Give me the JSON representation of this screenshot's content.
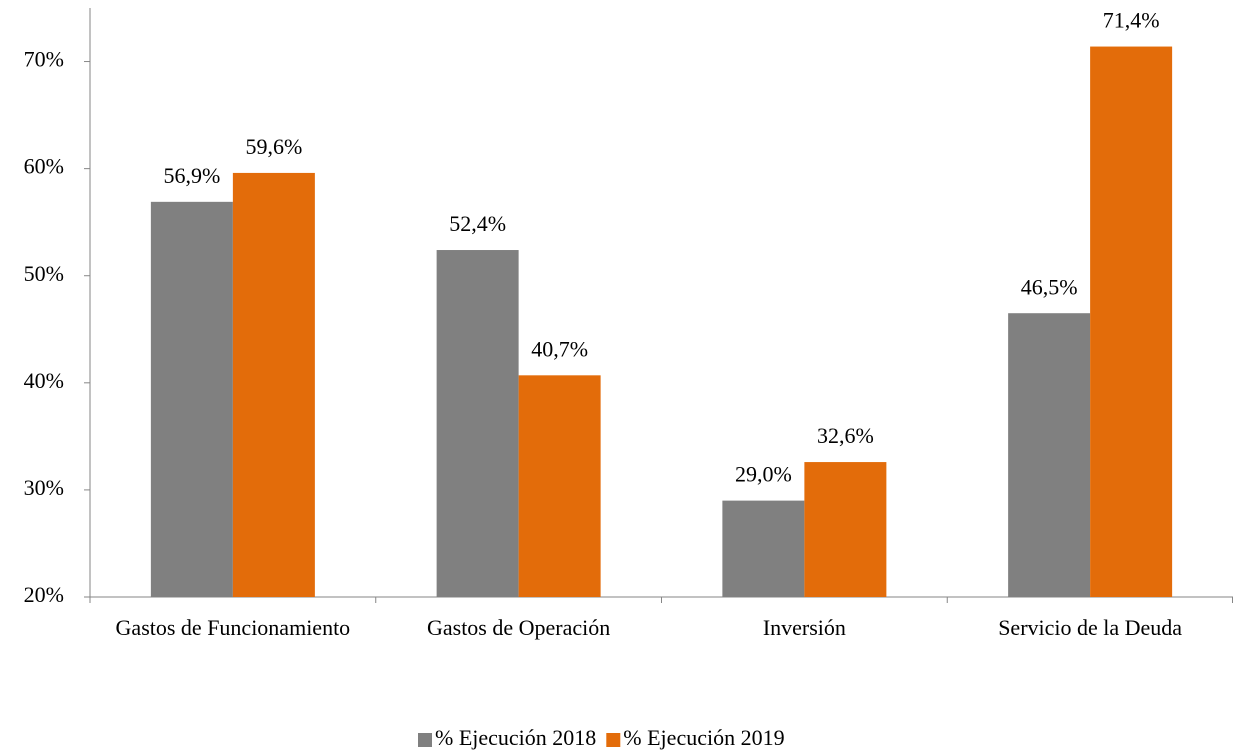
{
  "chart_data": {
    "type": "bar",
    "categories": [
      "Gastos de Funcionamiento",
      "Gastos de Operación",
      "Inversión",
      "Servicio de la Deuda"
    ],
    "series": [
      {
        "name": "% Ejecución 2018",
        "color": "#808080",
        "values": [
          56.9,
          52.4,
          29.0,
          46.5
        ],
        "value_labels": [
          "56,9%",
          "52,4%",
          "29,0%",
          "46,5%"
        ]
      },
      {
        "name": "% Ejecución 2019",
        "color": "#e36c0a",
        "values": [
          59.6,
          40.7,
          32.6,
          71.4
        ],
        "value_labels": [
          "59,6%",
          "40,7%",
          "32,6%",
          "71,4%"
        ]
      }
    ],
    "ylim": [
      20,
      75
    ],
    "yticks": [
      {
        "value": 20,
        "label": "20%"
      },
      {
        "value": 30,
        "label": "30%"
      },
      {
        "value": 40,
        "label": "40%"
      },
      {
        "value": 50,
        "label": "50%"
      },
      {
        "value": 60,
        "label": "60%"
      },
      {
        "value": 70,
        "label": "70%"
      }
    ],
    "legend": "bottom"
  }
}
